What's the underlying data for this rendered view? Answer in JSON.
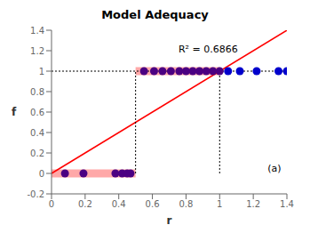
{
  "chart_data": {
    "type": "scatter",
    "title": "Model Adequacy",
    "xlabel": "r",
    "ylabel": "f",
    "xlim": [
      0,
      1.4
    ],
    "ylim": [
      -0.2,
      1.4
    ],
    "xticks": [
      0,
      0.2,
      0.4,
      0.6,
      0.8,
      1.0,
      1.2,
      1.4
    ],
    "yticks": [
      -0.2,
      0,
      0.2,
      0.4,
      0.6,
      0.8,
      1.0,
      1.2,
      1.4
    ],
    "grid": false,
    "series": [
      {
        "color": "#4B0082",
        "x": [
          0.08,
          0.19,
          0.38,
          0.42,
          0.45,
          0.47
        ],
        "values": [
          0,
          0,
          0,
          0,
          0,
          0
        ]
      },
      {
        "color": "#4B0082",
        "x": [
          0.55,
          0.61,
          0.66,
          0.71,
          0.76,
          0.8,
          0.84,
          0.88,
          0.92,
          0.96,
          1.0
        ],
        "values": [
          1,
          1,
          1,
          1,
          1,
          1,
          1,
          1,
          1,
          1,
          1
        ]
      },
      {
        "color": "#0000CC",
        "x": [
          1.05,
          1.12,
          1.22,
          1.35,
          1.4
        ],
        "values": [
          1,
          1,
          1,
          1,
          1
        ]
      }
    ],
    "lines": [
      {
        "x": [
          0,
          1.4
        ],
        "values": [
          0,
          1.4
        ],
        "color": "#FF0000",
        "line_style": "solid"
      },
      {
        "x": [
          0,
          1.4
        ],
        "values": [
          1.0,
          1.0
        ],
        "color": "black",
        "line_style": "dotted"
      },
      {
        "x": [
          0.5,
          0.5
        ],
        "values": [
          0.0,
          1.0
        ],
        "color": "black",
        "line_style": "dotted"
      },
      {
        "x": [
          1.0,
          1.0
        ],
        "values": [
          0.0,
          1.0
        ],
        "color": "black",
        "line_style": "dotted"
      }
    ],
    "rects": [
      {
        "x": [
          0.0,
          0.5
        ],
        "y": [
          -0.04,
          0.04
        ],
        "color": "#FF9999"
      },
      {
        "x": [
          0.5,
          1.0
        ],
        "y": [
          0.96,
          1.04
        ],
        "color": "#FF9999"
      }
    ],
    "annotations": [
      {
        "text": "R² = 0.6866",
        "x": 0.75,
        "y": 1.22
      },
      {
        "text": "(a)",
        "x": 1.28,
        "y": 0.055
      }
    ]
  }
}
